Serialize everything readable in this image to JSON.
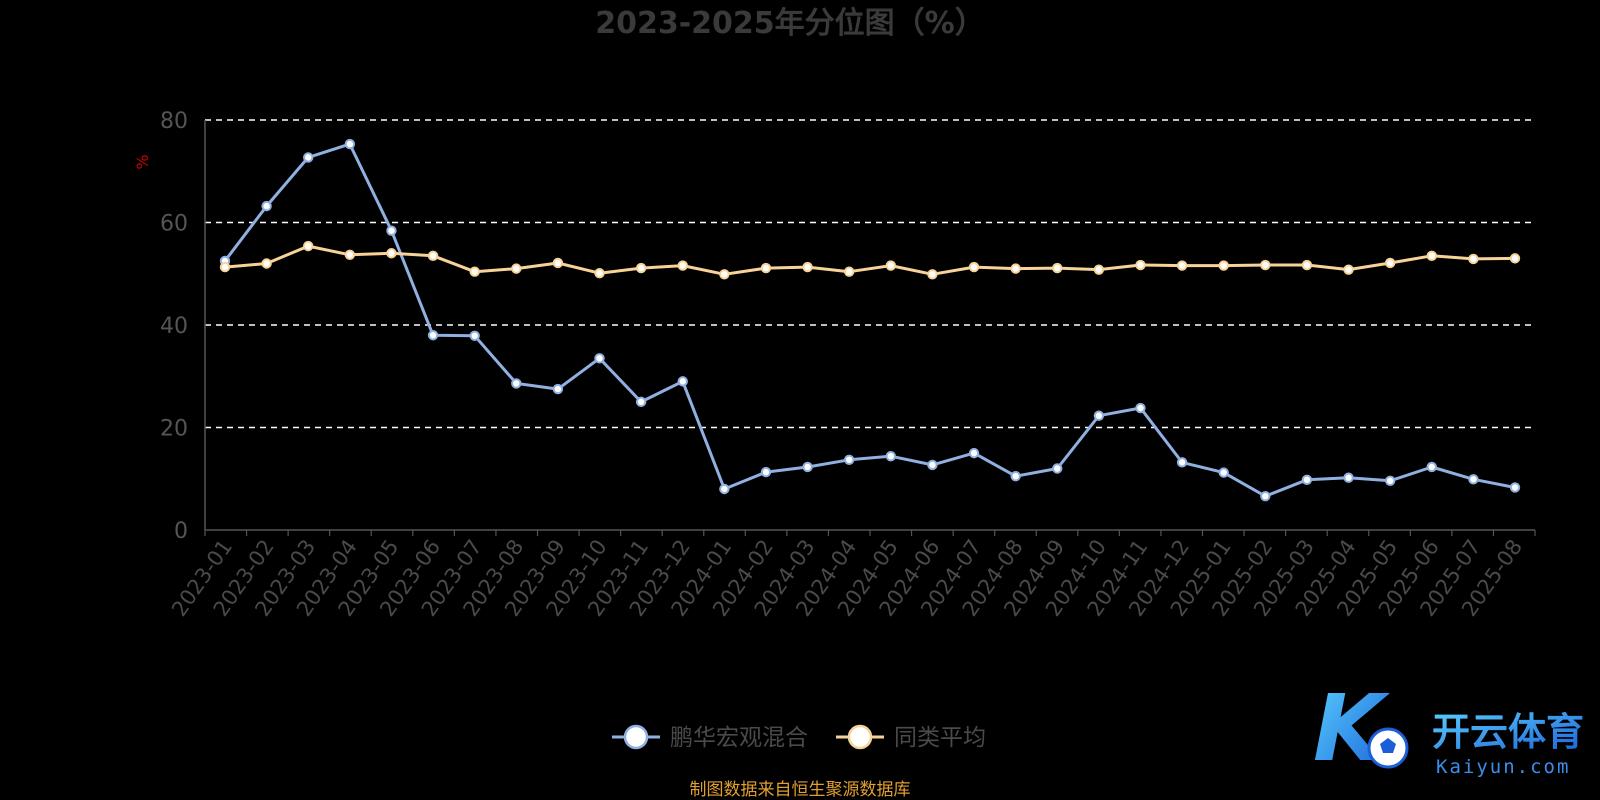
{
  "chart_data": {
    "type": "line",
    "title": "2023-2025年分位图（%）",
    "ylabel": "%",
    "xlabel": "",
    "ylim": [
      0,
      80
    ],
    "yticks": [
      0,
      20,
      40,
      60,
      80
    ],
    "grid": true,
    "legend_position": "bottom",
    "categories": [
      "2023-01",
      "2023-02",
      "2023-03",
      "2023-04",
      "2023-05",
      "2023-06",
      "2023-07",
      "2023-08",
      "2023-09",
      "2023-10",
      "2023-11",
      "2023-12",
      "2024-01",
      "2024-02",
      "2024-03",
      "2024-04",
      "2024-05",
      "2024-06",
      "2024-07",
      "2024-08",
      "2024-09",
      "2024-10",
      "2024-11",
      "2024-12",
      "2025-01",
      "2025-02",
      "2025-03",
      "2025-04",
      "2025-05",
      "2025-06",
      "2025-07",
      "2025-08"
    ],
    "series": [
      {
        "name": "鹏华宏观混合",
        "color": "#8fb0e0",
        "values": [
          52.5,
          63.2,
          72.7,
          75.3,
          58.4,
          38.0,
          37.9,
          28.6,
          27.5,
          33.5,
          25.0,
          29.0,
          8.0,
          11.3,
          12.3,
          13.7,
          14.4,
          12.7,
          15.0,
          10.5,
          12.0,
          22.3,
          23.8,
          13.2,
          11.2,
          6.6,
          9.8,
          10.2,
          9.6,
          12.3,
          9.9,
          8.3
        ]
      },
      {
        "name": "同类平均",
        "color": "#f8d398",
        "values": [
          51.3,
          52.0,
          55.4,
          53.7,
          54.0,
          53.5,
          50.4,
          51.0,
          52.1,
          50.1,
          51.1,
          51.6,
          49.9,
          51.1,
          51.3,
          50.4,
          51.6,
          49.9,
          51.3,
          51.0,
          51.1,
          50.8,
          51.7,
          51.6,
          51.6,
          51.7,
          51.7,
          50.8,
          52.1,
          53.5,
          52.9,
          53.0
        ]
      }
    ]
  },
  "source": "制图数据来自恒生聚源数据库",
  "logo": {
    "mark": "K",
    "text_cn": "开云体育",
    "text_en": "Kaiyun.com"
  }
}
